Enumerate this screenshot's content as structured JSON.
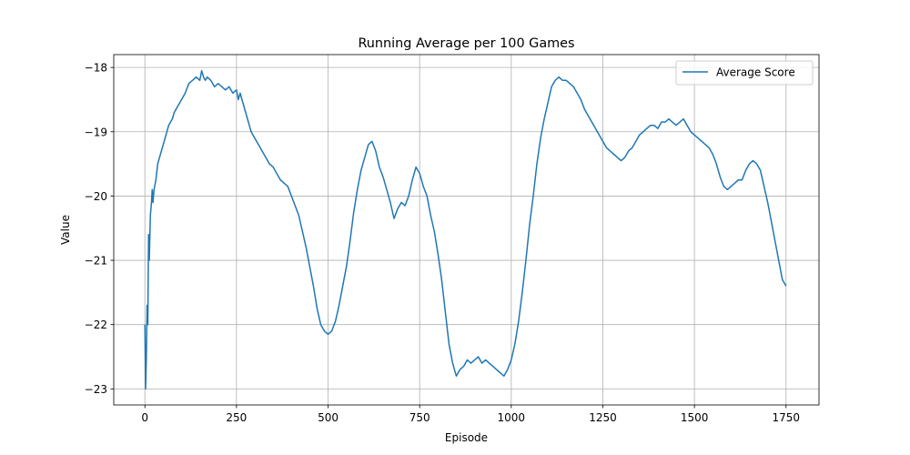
{
  "chart_data": {
    "type": "line",
    "title": "Running Average per 100 Games",
    "xlabel": "Episode",
    "ylabel": "Value",
    "xlim": [
      -85,
      1840
    ],
    "ylim": [
      -23.25,
      -17.8
    ],
    "xticks": [
      0,
      250,
      500,
      750,
      1000,
      1250,
      1500,
      1750
    ],
    "yticks": [
      -23,
      -22,
      -21,
      -20,
      -19,
      -18
    ],
    "grid": true,
    "legend_position": "top-right",
    "line_color": "#1f77b4",
    "series": [
      {
        "name": "Average Score",
        "x": [
          0,
          2,
          4,
          6,
          8,
          10,
          12,
          15,
          18,
          20,
          22,
          25,
          30,
          35,
          40,
          45,
          50,
          55,
          60,
          65,
          70,
          75,
          80,
          90,
          100,
          110,
          120,
          130,
          140,
          150,
          155,
          160,
          165,
          170,
          180,
          190,
          200,
          210,
          220,
          230,
          240,
          250,
          255,
          260,
          270,
          280,
          290,
          300,
          310,
          320,
          330,
          340,
          350,
          360,
          370,
          380,
          390,
          400,
          410,
          420,
          430,
          440,
          450,
          460,
          470,
          480,
          490,
          500,
          510,
          520,
          530,
          540,
          550,
          560,
          570,
          580,
          590,
          600,
          610,
          620,
          630,
          640,
          650,
          660,
          670,
          680,
          690,
          700,
          710,
          720,
          730,
          740,
          750,
          760,
          770,
          780,
          790,
          800,
          810,
          820,
          830,
          840,
          850,
          860,
          870,
          880,
          890,
          900,
          910,
          920,
          930,
          940,
          950,
          960,
          970,
          980,
          990,
          1000,
          1010,
          1020,
          1030,
          1040,
          1050,
          1060,
          1070,
          1080,
          1090,
          1100,
          1110,
          1120,
          1130,
          1140,
          1150,
          1160,
          1170,
          1180,
          1190,
          1200,
          1210,
          1220,
          1230,
          1240,
          1250,
          1260,
          1270,
          1280,
          1290,
          1300,
          1310,
          1320,
          1330,
          1340,
          1350,
          1360,
          1370,
          1380,
          1390,
          1400,
          1410,
          1420,
          1430,
          1440,
          1450,
          1460,
          1470,
          1480,
          1490,
          1500,
          1510,
          1520,
          1530,
          1540,
          1550,
          1560,
          1570,
          1580,
          1590,
          1600,
          1610,
          1620,
          1630,
          1640,
          1650,
          1660,
          1670,
          1680,
          1690,
          1700,
          1710,
          1720,
          1730,
          1740,
          1750
        ],
        "y": [
          -22.0,
          -23.0,
          -22.5,
          -21.7,
          -22.0,
          -20.6,
          -21.0,
          -20.3,
          -20.1,
          -19.9,
          -20.1,
          -19.9,
          -19.75,
          -19.5,
          -19.4,
          -19.3,
          -19.2,
          -19.1,
          -19.0,
          -18.9,
          -18.85,
          -18.8,
          -18.7,
          -18.6,
          -18.5,
          -18.4,
          -18.25,
          -18.2,
          -18.15,
          -18.2,
          -18.05,
          -18.15,
          -18.2,
          -18.15,
          -18.2,
          -18.3,
          -18.25,
          -18.3,
          -18.35,
          -18.3,
          -18.4,
          -18.35,
          -18.5,
          -18.4,
          -18.6,
          -18.8,
          -19.0,
          -19.1,
          -19.2,
          -19.3,
          -19.4,
          -19.5,
          -19.55,
          -19.65,
          -19.75,
          -19.8,
          -19.85,
          -20.0,
          -20.15,
          -20.3,
          -20.55,
          -20.8,
          -21.1,
          -21.4,
          -21.75,
          -22.0,
          -22.1,
          -22.15,
          -22.1,
          -21.95,
          -21.7,
          -21.4,
          -21.1,
          -20.7,
          -20.25,
          -19.9,
          -19.6,
          -19.4,
          -19.2,
          -19.15,
          -19.3,
          -19.55,
          -19.7,
          -19.9,
          -20.1,
          -20.35,
          -20.2,
          -20.1,
          -20.15,
          -20.0,
          -19.75,
          -19.55,
          -19.65,
          -19.85,
          -20.0,
          -20.3,
          -20.55,
          -20.9,
          -21.3,
          -21.8,
          -22.3,
          -22.6,
          -22.8,
          -22.7,
          -22.65,
          -22.55,
          -22.6,
          -22.55,
          -22.5,
          -22.6,
          -22.55,
          -22.6,
          -22.65,
          -22.7,
          -22.75,
          -22.8,
          -22.7,
          -22.55,
          -22.3,
          -21.95,
          -21.5,
          -21.0,
          -20.45,
          -20.0,
          -19.5,
          -19.1,
          -18.8,
          -18.55,
          -18.3,
          -18.2,
          -18.15,
          -18.2,
          -18.2,
          -18.25,
          -18.3,
          -18.4,
          -18.5,
          -18.65,
          -18.75,
          -18.85,
          -18.95,
          -19.05,
          -19.15,
          -19.25,
          -19.3,
          -19.35,
          -19.4,
          -19.45,
          -19.4,
          -19.3,
          -19.25,
          -19.15,
          -19.05,
          -19.0,
          -18.95,
          -18.9,
          -18.9,
          -18.95,
          -18.85,
          -18.85,
          -18.8,
          -18.85,
          -18.9,
          -18.85,
          -18.8,
          -18.9,
          -19.0,
          -19.05,
          -19.1,
          -19.15,
          -19.2,
          -19.25,
          -19.35,
          -19.5,
          -19.7,
          -19.85,
          -19.9,
          -19.85,
          -19.8,
          -19.75,
          -19.75,
          -19.6,
          -19.5,
          -19.45,
          -19.5,
          -19.6,
          -19.85,
          -20.1,
          -20.4,
          -20.7,
          -21.0,
          -21.3,
          -21.4
        ]
      }
    ]
  }
}
